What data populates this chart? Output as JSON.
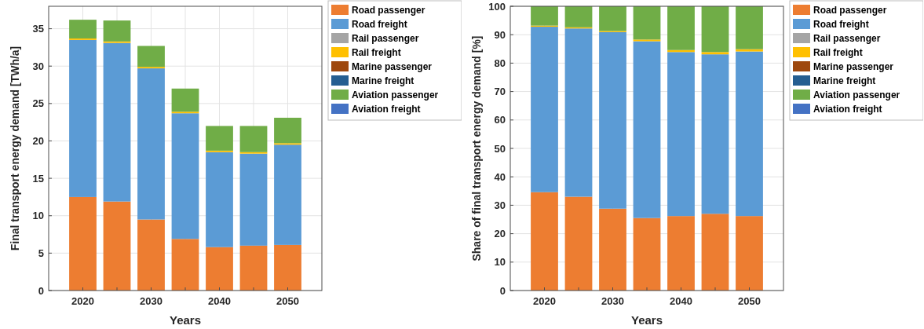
{
  "chart_data": [
    {
      "type": "bar",
      "stacked": true,
      "xlabel": "Years",
      "ylabel": "Final transport energy demand [TWh/a]",
      "x": [
        2020,
        2025,
        2030,
        2035,
        2040,
        2045,
        2050
      ],
      "xlim": [
        2015,
        2055
      ],
      "xticks": [
        2020,
        {
          "value": 2025,
          "label": null
        },
        2030,
        {
          "value": 2035,
          "label": null
        },
        2040,
        {
          "value": 2045,
          "label": null
        },
        2050
      ],
      "ylim": [
        0,
        38
      ],
      "yticks": [
        0,
        5,
        10,
        15,
        20,
        25,
        30,
        35
      ],
      "grid": true,
      "legend": "right",
      "series": [
        {
          "name": "Road passenger",
          "color": "#ed7d31",
          "values": [
            12.5,
            11.9,
            9.5,
            6.9,
            5.8,
            6.0,
            6.1
          ]
        },
        {
          "name": "Road freight",
          "color": "#5b9bd5",
          "values": [
            21.0,
            21.2,
            20.2,
            16.8,
            12.7,
            12.3,
            13.4
          ]
        },
        {
          "name": "Rail passenger",
          "color": "#a5a5a5",
          "values": [
            0,
            0,
            0,
            0,
            0,
            0,
            0
          ]
        },
        {
          "name": "Rail freight",
          "color": "#ffc000",
          "values": [
            0.2,
            0.2,
            0.2,
            0.2,
            0.2,
            0.2,
            0.2
          ]
        },
        {
          "name": "Marine passenger",
          "color": "#9e480e",
          "values": [
            0,
            0,
            0,
            0,
            0,
            0,
            0
          ]
        },
        {
          "name": "Marine freight",
          "color": "#255e91",
          "values": [
            0,
            0,
            0,
            0,
            0,
            0,
            0
          ]
        },
        {
          "name": "Aviation passenger",
          "color": "#70ad47",
          "values": [
            2.5,
            2.8,
            2.8,
            3.1,
            3.3,
            3.5,
            3.4
          ]
        },
        {
          "name": "Aviation freight",
          "color": "#4472c4",
          "values": [
            0,
            0,
            0,
            0,
            0,
            0,
            0
          ]
        }
      ]
    },
    {
      "type": "bar",
      "stacked": true,
      "xlabel": "Years",
      "ylabel": "Share of final transport energy demand [%]",
      "x": [
        2020,
        2025,
        2030,
        2035,
        2040,
        2045,
        2050
      ],
      "xlim": [
        2015,
        2055
      ],
      "xticks": [
        2020,
        {
          "value": 2025,
          "label": null
        },
        2030,
        {
          "value": 2035,
          "label": null
        },
        2040,
        {
          "value": 2045,
          "label": null
        },
        2050
      ],
      "ylim": [
        0,
        100
      ],
      "yticks": [
        0,
        10,
        20,
        30,
        40,
        50,
        60,
        70,
        80,
        90,
        100
      ],
      "grid": true,
      "legend": "right",
      "series": [
        {
          "name": "Road passenger",
          "color": "#ed7d31",
          "values": [
            34.6,
            33.0,
            28.8,
            25.5,
            26.2,
            27.0,
            26.2
          ]
        },
        {
          "name": "Road freight",
          "color": "#5b9bd5",
          "values": [
            58.2,
            59.2,
            62.1,
            62.2,
            57.7,
            56.1,
            57.9
          ]
        },
        {
          "name": "Rail passenger",
          "color": "#a5a5a5",
          "values": [
            0,
            0,
            0,
            0,
            0,
            0,
            0
          ]
        },
        {
          "name": "Rail freight",
          "color": "#ffc000",
          "values": [
            0.4,
            0.4,
            0.4,
            0.6,
            0.7,
            0.8,
            0.8
          ]
        },
        {
          "name": "Marine passenger",
          "color": "#9e480e",
          "values": [
            0,
            0,
            0,
            0,
            0,
            0,
            0
          ]
        },
        {
          "name": "Marine freight",
          "color": "#255e91",
          "values": [
            0,
            0,
            0,
            0,
            0,
            0,
            0
          ]
        },
        {
          "name": "Aviation passenger",
          "color": "#70ad47",
          "values": [
            6.8,
            7.4,
            8.7,
            11.7,
            15.4,
            16.1,
            15.1
          ]
        },
        {
          "name": "Aviation freight",
          "color": "#4472c4",
          "values": [
            0,
            0,
            0,
            0,
            0,
            0,
            0
          ]
        }
      ]
    }
  ]
}
